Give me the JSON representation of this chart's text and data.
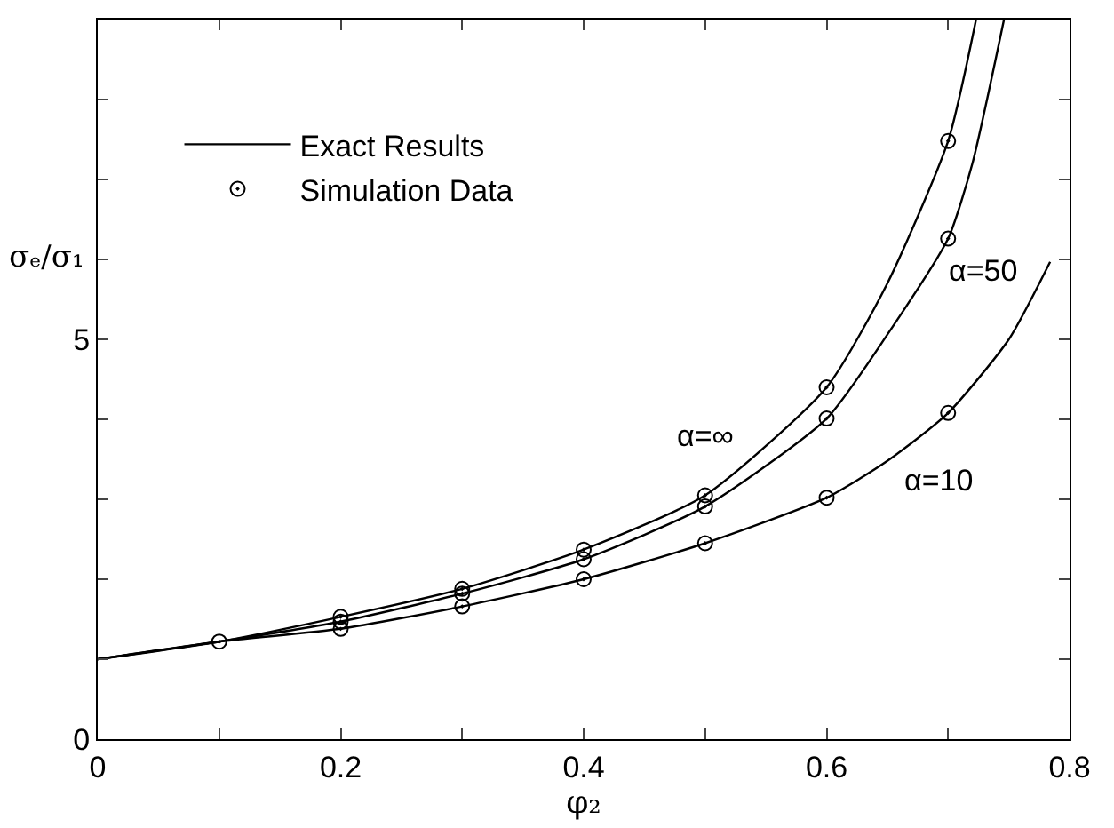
{
  "chart_data": {
    "type": "line",
    "xlabel": "φ₂",
    "ylabel": "σₑ/σ₁",
    "xlim": [
      0,
      0.8
    ],
    "ylim": [
      0,
      9
    ],
    "xticks": [
      0,
      {
        "value": 0.1,
        "label": null
      },
      0.2,
      {
        "value": 0.3,
        "label": null
      },
      0.4,
      {
        "value": 0.5,
        "label": null
      },
      0.6,
      {
        "value": 0.7,
        "label": null
      },
      0.8
    ],
    "yticks": [
      0,
      {
        "value": 1,
        "label": null
      },
      {
        "value": 2,
        "label": null
      },
      {
        "value": 3,
        "label": null
      },
      {
        "value": 4,
        "label": null
      },
      5,
      {
        "value": 6,
        "label": null
      },
      {
        "value": 7,
        "label": null
      },
      {
        "value": 8,
        "label": null
      },
      {
        "value": 9,
        "label": null
      }
    ],
    "grid": false,
    "legend": "top left",
    "line_style": "solid",
    "series": [
      {
        "name": "Exact Results",
        "color": "#000000",
        "marker": "none",
        "x": [
          0,
          0.1,
          0.2,
          0.3,
          0.4,
          0.5,
          0.6,
          0.65,
          0.7,
          0.723
        ],
        "values": [
          1.0,
          1.22,
          1.53,
          1.88,
          2.37,
          3.05,
          4.4,
          5.7,
          7.48,
          9.0
        ]
      },
      {
        "color": "#000000",
        "marker": "none",
        "x": [
          0,
          0.1,
          0.2,
          0.3,
          0.4,
          0.5,
          0.6,
          0.65,
          0.7,
          0.72,
          0.746
        ],
        "values": [
          1.0,
          1.22,
          1.47,
          1.82,
          2.25,
          2.91,
          4.01,
          5.06,
          6.26,
          7.2,
          9.0
        ]
      },
      {
        "color": "#000000",
        "marker": "none",
        "x": [
          0,
          0.1,
          0.2,
          0.3,
          0.4,
          0.5,
          0.6,
          0.65,
          0.7,
          0.75,
          0.784
        ],
        "values": [
          1.0,
          1.22,
          1.38,
          1.66,
          2.0,
          2.45,
          3.02,
          3.48,
          4.08,
          5.0,
          5.97
        ]
      },
      {
        "name": "Simulation Data",
        "type": "scatter",
        "color": "#000000",
        "marker": "circle",
        "x": [
          0.1,
          0.2,
          0.3,
          0.4,
          0.5,
          0.6,
          0.7,
          0.2,
          0.3,
          0.4,
          0.5,
          0.6,
          0.7,
          0.2,
          0.3,
          0.4,
          0.5,
          0.6,
          0.7
        ],
        "values": [
          1.22,
          1.53,
          1.88,
          2.37,
          3.05,
          4.4,
          7.48,
          1.47,
          1.82,
          2.25,
          2.91,
          4.01,
          6.26,
          1.38,
          1.66,
          2.0,
          2.45,
          3.02,
          4.08
        ]
      }
    ],
    "annotations": [
      "α=∞",
      "α=50",
      "α=10"
    ]
  }
}
